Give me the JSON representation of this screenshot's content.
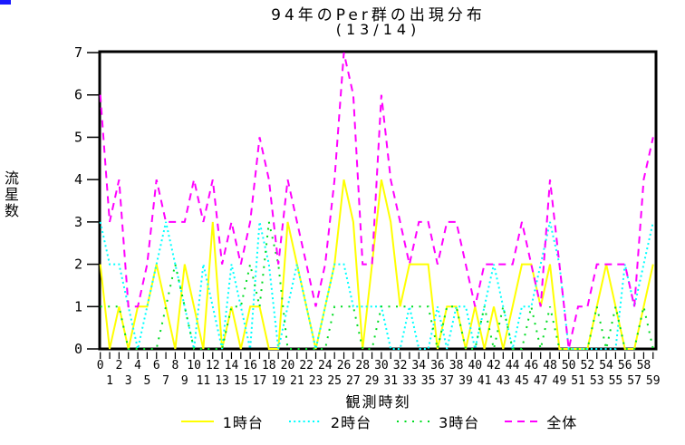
{
  "corner_artifact_color": "#1a1aff",
  "title": "94年のPer群の出現分布",
  "subtitle": "(13/14)",
  "y_axis": {
    "label": "流星数",
    "tick_labels": [
      "0",
      "1",
      "2",
      "3",
      "4",
      "5",
      "6",
      "7"
    ]
  },
  "x_axis": {
    "label": "観測時刻",
    "tick_labels": [
      "0",
      "1",
      "2",
      "3",
      "4",
      "5",
      "6",
      "7",
      "8",
      "9",
      "10",
      "11",
      "12",
      "13",
      "14",
      "15",
      "16",
      "17",
      "18",
      "19",
      "20",
      "21",
      "22",
      "23",
      "24",
      "25",
      "26",
      "27",
      "28",
      "29",
      "30",
      "31",
      "32",
      "33",
      "34",
      "35",
      "36",
      "37",
      "38",
      "39",
      "40",
      "41",
      "42",
      "43",
      "44",
      "45",
      "46",
      "47",
      "48",
      "49",
      "50",
      "51",
      "52",
      "53",
      "54",
      "55",
      "56",
      "57",
      "58",
      "59"
    ]
  },
  "legend": {
    "items": [
      {
        "label": "1時台",
        "color": "#ffff00",
        "style": "solid"
      },
      {
        "label": "2時台",
        "color": "#00ffff",
        "style": "dotted"
      },
      {
        "label": "3時台",
        "color": "#00dd22",
        "style": "sparse-dotted"
      },
      {
        "label": "全体",
        "color": "#ff00ff",
        "style": "dashed"
      }
    ]
  },
  "chart_data": {
    "type": "line",
    "title": "94年のPer群の出現分布 (13/14)",
    "xlabel": "観測時刻",
    "ylabel": "流星数",
    "x": [
      0,
      1,
      2,
      3,
      4,
      5,
      6,
      7,
      8,
      9,
      10,
      11,
      12,
      13,
      14,
      15,
      16,
      17,
      18,
      19,
      20,
      21,
      22,
      23,
      24,
      25,
      26,
      27,
      28,
      29,
      30,
      31,
      32,
      33,
      34,
      35,
      36,
      37,
      38,
      39,
      40,
      41,
      42,
      43,
      44,
      45,
      46,
      47,
      48,
      49,
      50,
      51,
      52,
      53,
      54,
      55,
      56,
      57,
      58,
      59
    ],
    "ylim": [
      0,
      7
    ],
    "grid": false,
    "legend_position": "bottom",
    "series": [
      {
        "name": "1時台",
        "color": "#ffff00",
        "line_style": "solid",
        "values": [
          2,
          0,
          1,
          0,
          1,
          1,
          2,
          1,
          0,
          2,
          1,
          0,
          3,
          0,
          1,
          0,
          1,
          1,
          0,
          0,
          3,
          2,
          1,
          0,
          1,
          2,
          4,
          3,
          0,
          2,
          4,
          3,
          1,
          2,
          2,
          2,
          0,
          1,
          1,
          0,
          1,
          0,
          1,
          0,
          1,
          2,
          2,
          1,
          2,
          0,
          0,
          0,
          0,
          1,
          2,
          1,
          0,
          0,
          1,
          2
        ]
      },
      {
        "name": "2時台",
        "color": "#00ffff",
        "line_style": "dotted",
        "values": [
          3,
          2,
          2,
          1,
          0,
          1,
          2,
          3,
          2,
          1,
          0,
          2,
          1,
          0,
          2,
          1,
          0,
          3,
          2,
          0,
          1,
          2,
          1,
          0,
          1,
          2,
          2,
          1,
          1,
          1,
          1,
          0,
          0,
          1,
          0,
          0,
          1,
          0,
          1,
          1,
          0,
          1,
          2,
          1,
          0,
          1,
          1,
          2,
          3,
          2,
          0,
          0,
          0,
          0,
          0,
          0,
          2,
          1,
          2,
          3
        ]
      },
      {
        "name": "3時台",
        "color": "#00dd22",
        "line_style": "sparse-dotted",
        "values": [
          1,
          1,
          1,
          0,
          0,
          0,
          0,
          1,
          2,
          1,
          0,
          0,
          0,
          0,
          1,
          1,
          2,
          1,
          3,
          2,
          0,
          0,
          0,
          0,
          0,
          1,
          1,
          1,
          0,
          0,
          1,
          1,
          1,
          1,
          1,
          1,
          0,
          1,
          1,
          0,
          0,
          1,
          0,
          1,
          0,
          0,
          1,
          0,
          1,
          0,
          0,
          0,
          0,
          1,
          0,
          1,
          0,
          0,
          1,
          0
        ]
      },
      {
        "name": "全体",
        "color": "#ff00ff",
        "line_style": "dashed",
        "values": [
          6,
          3,
          4,
          1,
          1,
          2,
          4,
          3,
          3,
          3,
          4,
          3,
          4,
          2,
          3,
          2,
          3,
          5,
          4,
          2,
          4,
          3,
          2,
          1,
          2,
          4,
          7,
          6,
          2,
          2,
          6,
          4,
          3,
          2,
          3,
          3,
          2,
          3,
          3,
          2,
          1,
          2,
          2,
          2,
          2,
          3,
          2,
          1,
          4,
          2,
          0,
          1,
          1,
          2,
          2,
          2,
          2,
          1,
          4,
          5
        ]
      }
    ]
  }
}
